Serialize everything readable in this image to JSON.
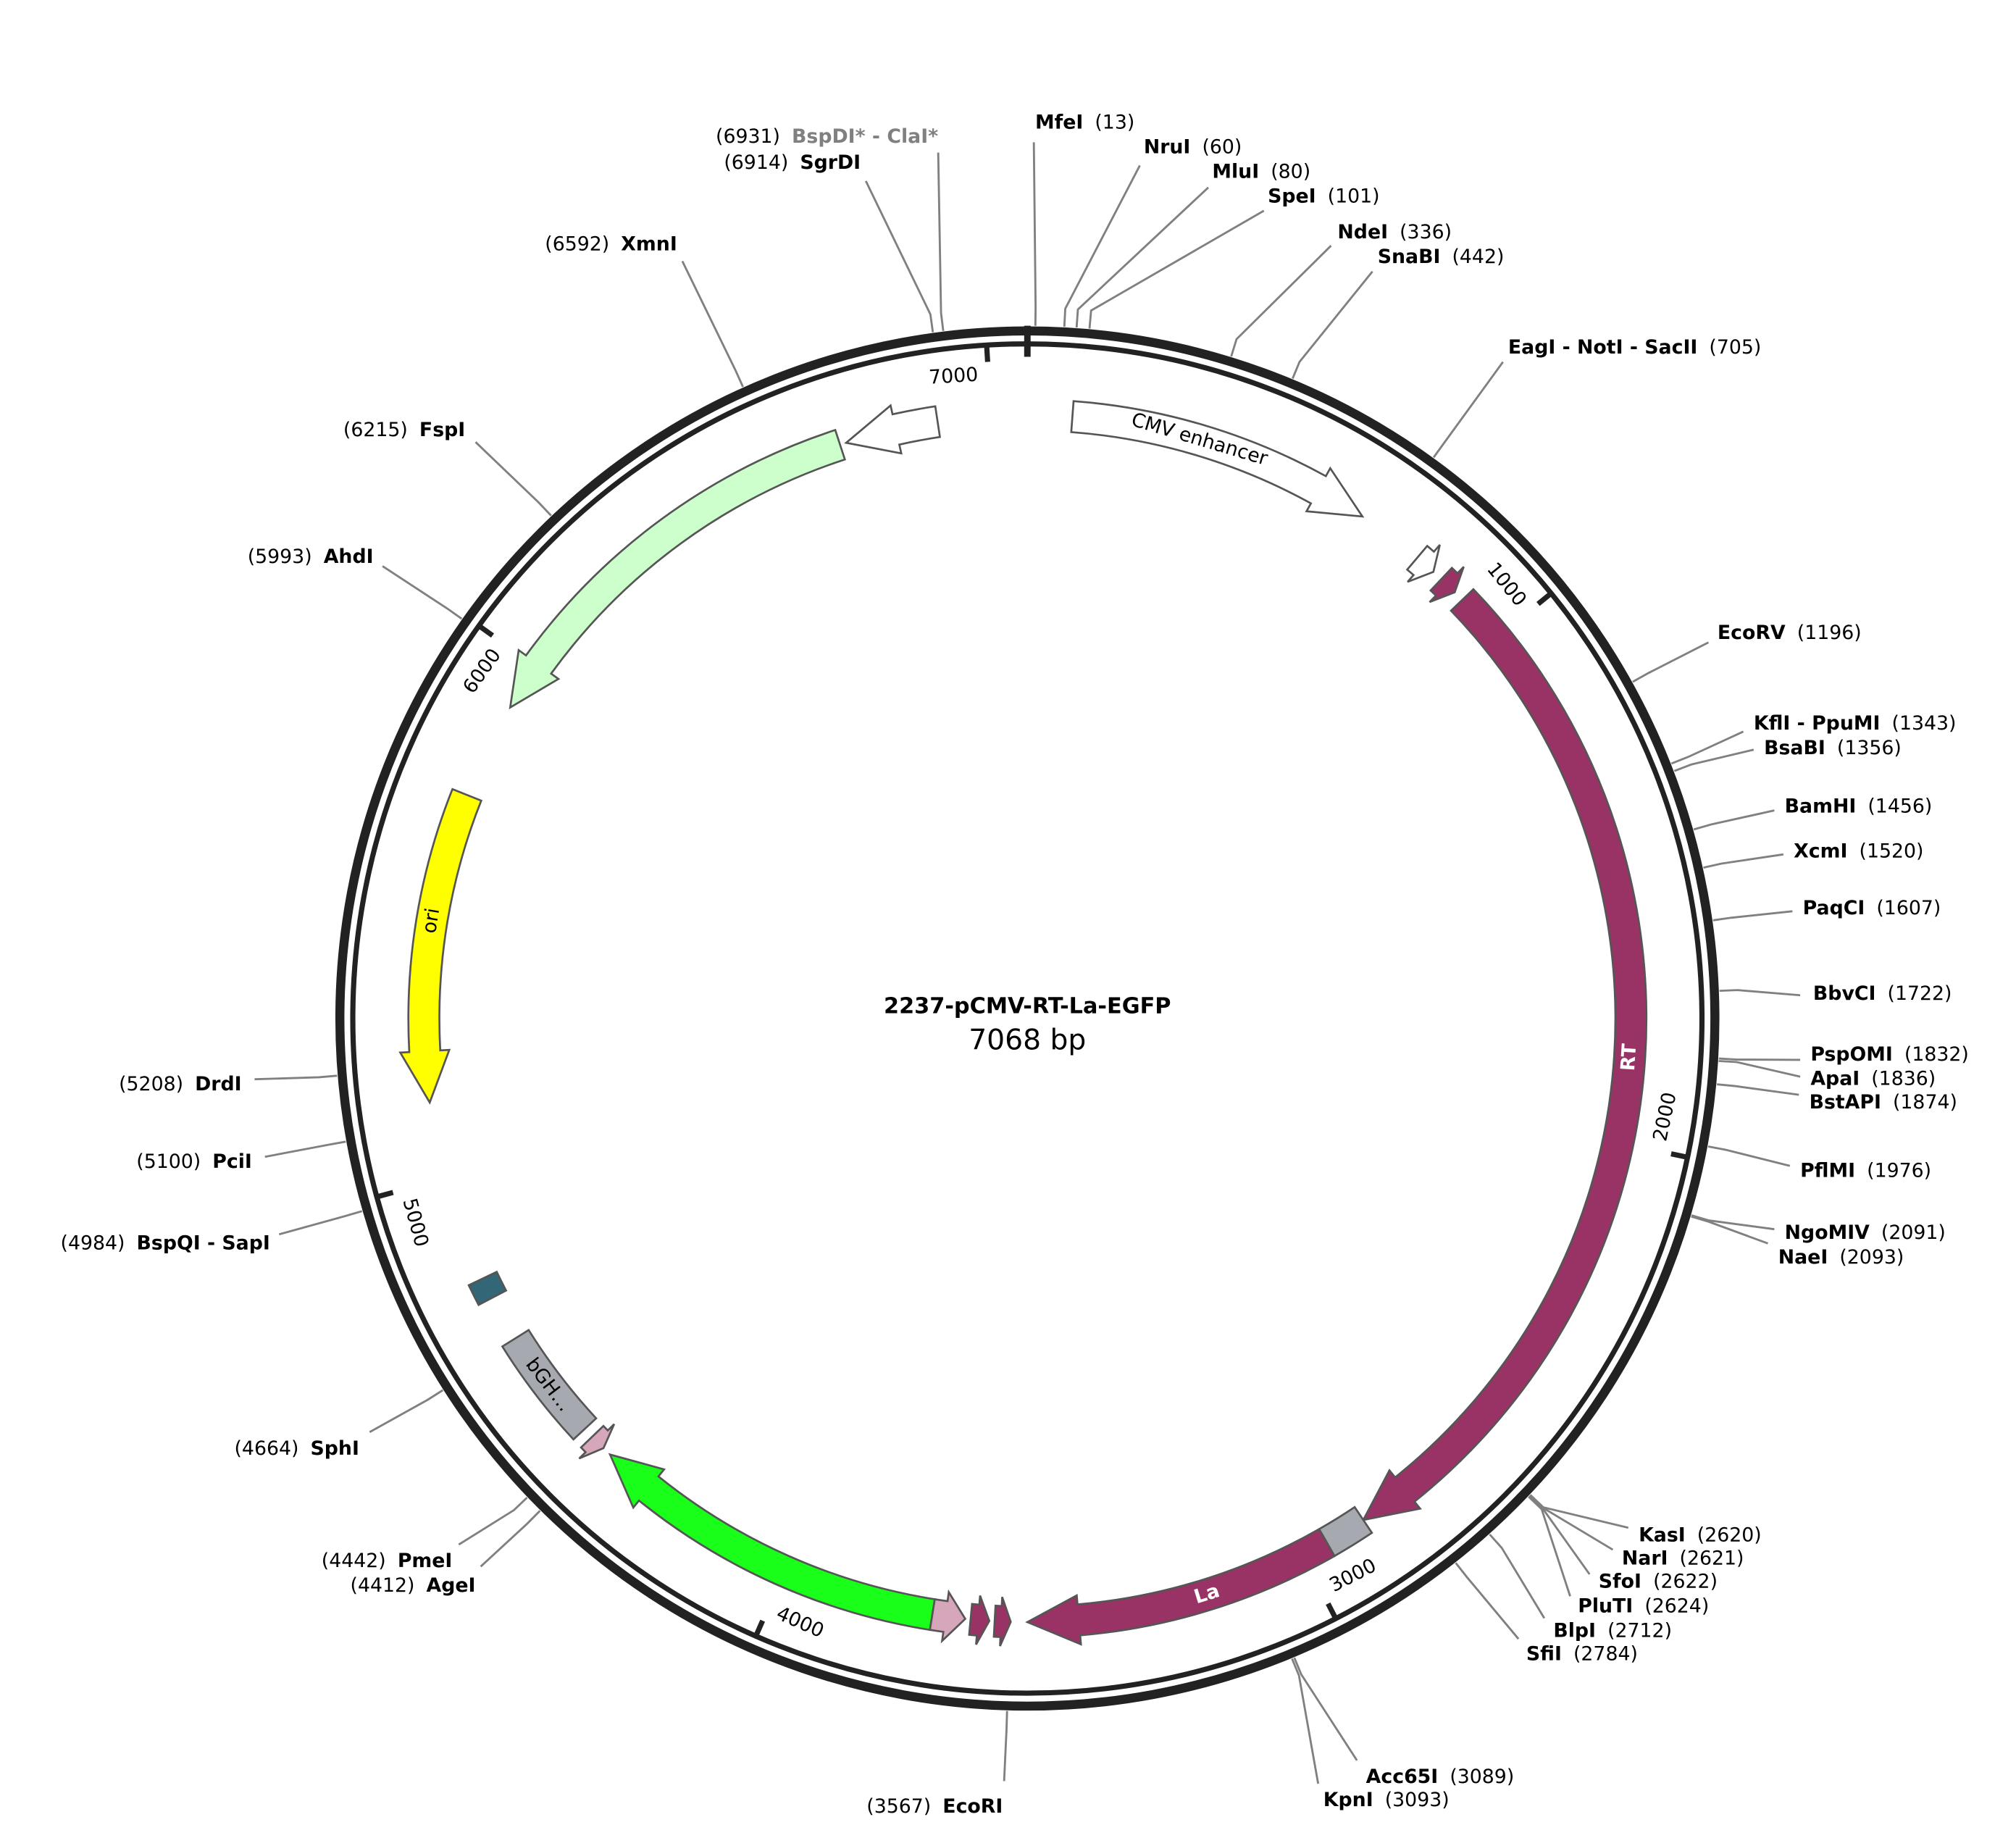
{
  "title": "2237-pCMV-RT-La-EGFP",
  "length": {
    "value": 7068,
    "label": "7068 bp"
  },
  "ticks": [
    1000,
    2000,
    3000,
    4000,
    5000,
    6000,
    7000
  ],
  "sites": [
    {
      "name": "MfeI",
      "position": {
        "value": 13,
        "label": "(13)"
      }
    },
    {
      "name": "NruI",
      "position": {
        "value": 60,
        "label": "(60)"
      }
    },
    {
      "name": "MluI",
      "position": {
        "value": 80,
        "label": "(80)"
      }
    },
    {
      "name": "SpeI",
      "position": {
        "value": 101,
        "label": "(101)"
      }
    },
    {
      "name": "NdeI",
      "position": {
        "value": 336,
        "label": "(336)"
      }
    },
    {
      "name": "SnaBI",
      "position": {
        "value": 442,
        "label": "(442)"
      }
    },
    {
      "name": "EagI - NotI - SacII",
      "position": {
        "value": 705,
        "label": "(705)"
      }
    },
    {
      "name": "EcoRV",
      "position": {
        "value": 1196,
        "label": "(1196)"
      }
    },
    {
      "name": "KflI - PpuMI",
      "position": {
        "value": 1343,
        "label": "(1343)"
      }
    },
    {
      "name": "BsaBI",
      "position": {
        "value": 1356,
        "label": "(1356)"
      }
    },
    {
      "name": "BamHI",
      "position": {
        "value": 1456,
        "label": "(1456)"
      }
    },
    {
      "name": "XcmI",
      "position": {
        "value": 1520,
        "label": "(1520)"
      }
    },
    {
      "name": "PaqCI",
      "position": {
        "value": 1607,
        "label": "(1607)"
      }
    },
    {
      "name": "BbvCI",
      "position": {
        "value": 1722,
        "label": "(1722)"
      }
    },
    {
      "name": "PspOMI",
      "position": {
        "value": 1832,
        "label": "(1832)"
      }
    },
    {
      "name": "ApaI",
      "position": {
        "value": 1836,
        "label": "(1836)"
      }
    },
    {
      "name": "BstAPI",
      "position": {
        "value": 1874,
        "label": "(1874)"
      }
    },
    {
      "name": "PflMI",
      "position": {
        "value": 1976,
        "label": "(1976)"
      }
    },
    {
      "name": "NgoMIV",
      "position": {
        "value": 2091,
        "label": "(2091)"
      }
    },
    {
      "name": "NaeI",
      "position": {
        "value": 2093,
        "label": "(2093)"
      }
    },
    {
      "name": "KasI",
      "position": {
        "value": 2620,
        "label": "(2620)"
      }
    },
    {
      "name": "NarI",
      "position": {
        "value": 2621,
        "label": "(2621)"
      }
    },
    {
      "name": "SfoI",
      "position": {
        "value": 2622,
        "label": "(2622)"
      }
    },
    {
      "name": "PluTI",
      "position": {
        "value": 2624,
        "label": "(2624)"
      }
    },
    {
      "name": "BlpI",
      "position": {
        "value": 2712,
        "label": "(2712)"
      }
    },
    {
      "name": "SfiI",
      "position": {
        "value": 2784,
        "label": "(2784)"
      }
    },
    {
      "name": "Acc65I",
      "position": {
        "value": 3089,
        "label": "(3089)"
      }
    },
    {
      "name": "KpnI",
      "position": {
        "value": 3093,
        "label": "(3093)"
      }
    },
    {
      "name": "EcoRI",
      "position": {
        "value": 3567,
        "label": "(3567)"
      }
    },
    {
      "name": "AgeI",
      "position": {
        "value": 4412,
        "label": "(4412)"
      }
    },
    {
      "name": "PmeI",
      "position": {
        "value": 4442,
        "label": "(4442)"
      }
    },
    {
      "name": "SphI",
      "position": {
        "value": 4664,
        "label": "(4664)"
      }
    },
    {
      "name": "BspQI - SapI",
      "position": {
        "value": 4984,
        "label": "(4984)"
      }
    },
    {
      "name": "PciI",
      "position": {
        "value": 5100,
        "label": "(5100)"
      }
    },
    {
      "name": "DrdI",
      "position": {
        "value": 5208,
        "label": "(5208)"
      }
    },
    {
      "name": "AhdI",
      "position": {
        "value": 5993,
        "label": "(5993)"
      }
    },
    {
      "name": "FspI",
      "position": {
        "value": 6215,
        "label": "(6215)"
      }
    },
    {
      "name": "XmnI",
      "position": {
        "value": 6592,
        "label": "(6592)"
      }
    },
    {
      "name": "SgrDI",
      "position": {
        "value": 6914,
        "label": "(6914)"
      }
    },
    {
      "name": "BspDI* - ClaI*",
      "position": {
        "value": 6931,
        "label": "(6931)"
      },
      "color": "#808080"
    }
  ],
  "features": [
    {
      "label": "CMV enhancer",
      "start": 84,
      "end": 662,
      "direction": "forward",
      "color": "#ffffff"
    },
    {
      "start": 790,
      "end": 830,
      "direction": "forward",
      "color": "#ffffff"
    },
    {
      "start": 850,
      "end": 885,
      "direction": "forward",
      "color": "#993366"
    },
    {
      "label": "RT",
      "start": 905,
      "end": 2870,
      "direction": "forward",
      "color": "#993366"
    },
    {
      "start": 2870,
      "end": 2950,
      "direction": "none",
      "color": "#a6aab0"
    },
    {
      "label": "La",
      "start": 2950,
      "end": 3534,
      "direction": "forward",
      "color": "#993366"
    },
    {
      "start": 3565,
      "end": 3595,
      "direction": "reverse",
      "color": "#993366"
    },
    {
      "start": 3605,
      "end": 3640,
      "direction": "reverse",
      "color": "#993366"
    },
    {
      "start": 3650,
      "end": 3712,
      "direction": "reverse",
      "color": "#d6a6bb"
    },
    {
      "start": 3712,
      "end": 4393,
      "direction": "forward",
      "color": "#19ff19"
    },
    {
      "start": 4410,
      "end": 4440,
      "direction": "reverse",
      "color": "#d6a6bb"
    },
    {
      "label": "bGH…",
      "start": 4460,
      "end": 4673,
      "direction": "none",
      "color": "#a6aab0"
    },
    {
      "start": 4760,
      "end": 4800,
      "direction": "none",
      "color": "#336677"
    },
    {
      "label": "ori",
      "start": 5144,
      "end": 5728,
      "direction": "reverse",
      "color": "#ffff00"
    },
    {
      "start": 5910,
      "end": 6713,
      "direction": "reverse",
      "color": "#ccffcc"
    },
    {
      "start": 6725,
      "end": 6900,
      "direction": "reverse",
      "color": "#ffffff"
    }
  ]
}
